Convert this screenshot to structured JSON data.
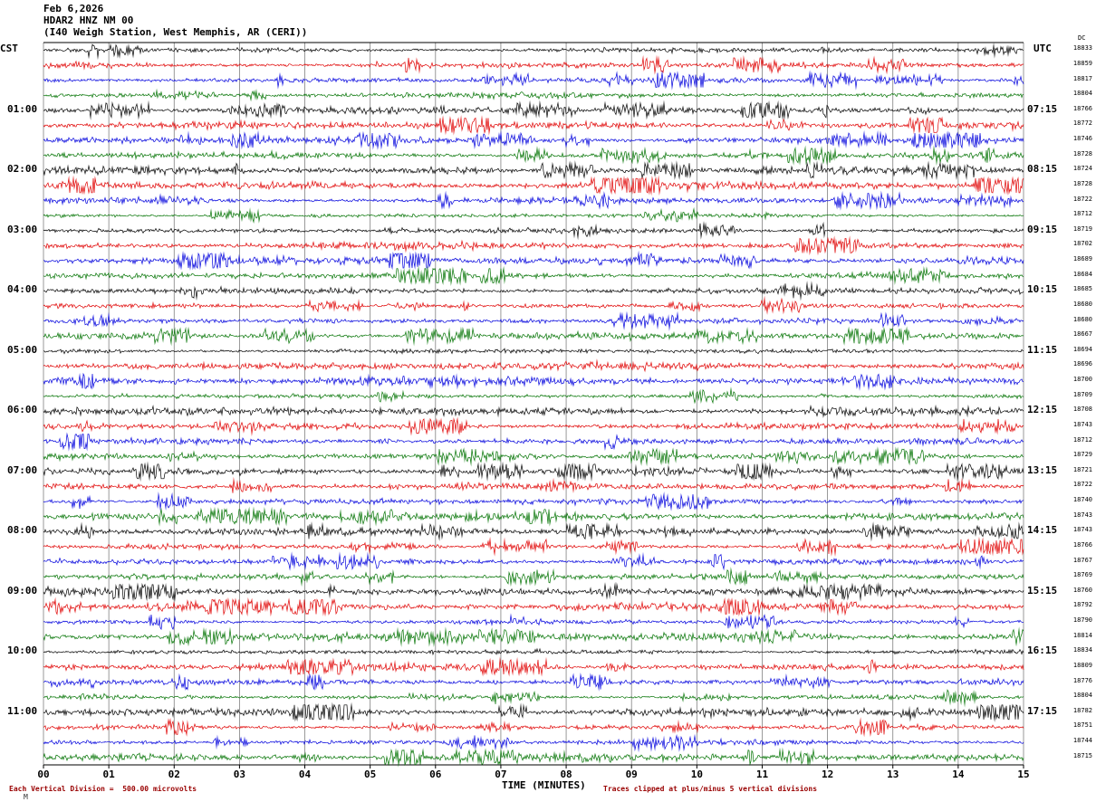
{
  "header": {
    "date": "Feb 6,2026",
    "station": "HDAR2 HNZ NM 00",
    "location": "(I40 Weigh Station, West Memphis, AR (CERI))"
  },
  "axes": {
    "left_header": "CST",
    "right_header": "UTC",
    "dc_header": "DC",
    "x_label": "TIME (MINUTES)",
    "x_ticks": [
      "00",
      "01",
      "02",
      "03",
      "04",
      "05",
      "06",
      "07",
      "08",
      "09",
      "10",
      "11",
      "12",
      "13",
      "14",
      "15"
    ]
  },
  "footer": {
    "left": "Each Vertical Division =  500.00 microvolts",
    "right": "Traces clipped at plus/minus 5 vertical divisions",
    "watermark": "M"
  },
  "chart_data": {
    "type": "line",
    "title": "HDAR2 HNZ NM 00 helicorder, Feb 6,2026",
    "xlabel": "TIME (MINUTES)",
    "minutes_per_line": 15,
    "x_range": [
      0,
      15
    ],
    "lines_per_hour": 4,
    "microvolts_per_division": 500,
    "clip_divisions": 5,
    "grid": true,
    "palette": {
      "black": "#000000",
      "red": "#e00000",
      "blue": "#0000dd",
      "green": "#007200"
    },
    "color_cycle": [
      "black",
      "red",
      "blue",
      "green"
    ],
    "rows": [
      {
        "cst": "CST",
        "utc": "UTC",
        "dc": "18833"
      },
      {
        "cst": "",
        "utc": "",
        "dc": "18859"
      },
      {
        "cst": "",
        "utc": "",
        "dc": "18817"
      },
      {
        "cst": "",
        "utc": "",
        "dc": "18804"
      },
      {
        "cst": "01:00",
        "utc": "07:15",
        "dc": "18766"
      },
      {
        "cst": "",
        "utc": "",
        "dc": "18772"
      },
      {
        "cst": "",
        "utc": "",
        "dc": "18746"
      },
      {
        "cst": "",
        "utc": "",
        "dc": "18728"
      },
      {
        "cst": "02:00",
        "utc": "08:15",
        "dc": "18724"
      },
      {
        "cst": "",
        "utc": "",
        "dc": "18728"
      },
      {
        "cst": "",
        "utc": "",
        "dc": "18722"
      },
      {
        "cst": "",
        "utc": "",
        "dc": "18712"
      },
      {
        "cst": "03:00",
        "utc": "09:15",
        "dc": "18719"
      },
      {
        "cst": "",
        "utc": "",
        "dc": "18702"
      },
      {
        "cst": "",
        "utc": "",
        "dc": "18689"
      },
      {
        "cst": "",
        "utc": "",
        "dc": "18684"
      },
      {
        "cst": "04:00",
        "utc": "10:15",
        "dc": "18685"
      },
      {
        "cst": "",
        "utc": "",
        "dc": "18680"
      },
      {
        "cst": "",
        "utc": "",
        "dc": "18680"
      },
      {
        "cst": "",
        "utc": "",
        "dc": "18667"
      },
      {
        "cst": "05:00",
        "utc": "11:15",
        "dc": "18694"
      },
      {
        "cst": "",
        "utc": "",
        "dc": "18696"
      },
      {
        "cst": "",
        "utc": "",
        "dc": "18700"
      },
      {
        "cst": "",
        "utc": "",
        "dc": "18709"
      },
      {
        "cst": "06:00",
        "utc": "12:15",
        "dc": "18708"
      },
      {
        "cst": "",
        "utc": "",
        "dc": "18743"
      },
      {
        "cst": "",
        "utc": "",
        "dc": "18712"
      },
      {
        "cst": "",
        "utc": "",
        "dc": "18729"
      },
      {
        "cst": "07:00",
        "utc": "13:15",
        "dc": "18721"
      },
      {
        "cst": "",
        "utc": "",
        "dc": "18722"
      },
      {
        "cst": "",
        "utc": "",
        "dc": "18740"
      },
      {
        "cst": "",
        "utc": "",
        "dc": "18743"
      },
      {
        "cst": "08:00",
        "utc": "14:15",
        "dc": "18743"
      },
      {
        "cst": "",
        "utc": "",
        "dc": "18766"
      },
      {
        "cst": "",
        "utc": "",
        "dc": "18767"
      },
      {
        "cst": "",
        "utc": "",
        "dc": "18769"
      },
      {
        "cst": "09:00",
        "utc": "15:15",
        "dc": "18760"
      },
      {
        "cst": "",
        "utc": "",
        "dc": "18792"
      },
      {
        "cst": "",
        "utc": "",
        "dc": "18790"
      },
      {
        "cst": "",
        "utc": "",
        "dc": "18814"
      },
      {
        "cst": "10:00",
        "utc": "16:15",
        "dc": "18834"
      },
      {
        "cst": "",
        "utc": "",
        "dc": "18809"
      },
      {
        "cst": "",
        "utc": "",
        "dc": "18776"
      },
      {
        "cst": "",
        "utc": "",
        "dc": "18804"
      },
      {
        "cst": "11:00",
        "utc": "17:15",
        "dc": "18782"
      },
      {
        "cst": "",
        "utc": "",
        "dc": "18751"
      },
      {
        "cst": "",
        "utc": "",
        "dc": "18744"
      },
      {
        "cst": "",
        "utc": "",
        "dc": "18715"
      }
    ]
  }
}
